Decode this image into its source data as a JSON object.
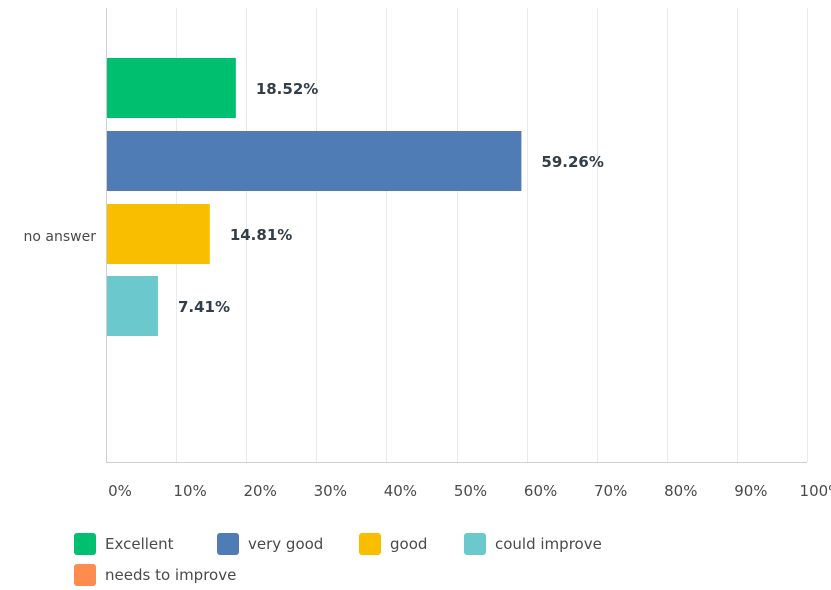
{
  "chart_data": {
    "type": "bar",
    "orientation": "horizontal",
    "categories": [
      "no answer"
    ],
    "series": [
      {
        "name": "Excellent",
        "values": [
          18.52
        ],
        "label": "18.52%",
        "color": "#00bf6f"
      },
      {
        "name": "very good",
        "values": [
          59.26
        ],
        "label": "59.26%",
        "color": "#507cb6"
      },
      {
        "name": "good",
        "values": [
          14.81
        ],
        "label": "14.81%",
        "color": "#f9be00"
      },
      {
        "name": "could improve",
        "values": [
          7.41
        ],
        "label": "7.41%",
        "color": "#6bc8cd"
      },
      {
        "name": "needs to improve",
        "values": [
          null
        ],
        "label": "",
        "color": "#ff8b4f"
      }
    ],
    "xlim": [
      0,
      100
    ],
    "x_ticks": [
      0,
      10,
      20,
      30,
      40,
      50,
      60,
      70,
      80,
      90,
      100
    ],
    "x_tick_labels": [
      "0%",
      "10%",
      "20%",
      "30%",
      "40%",
      "50%",
      "60%",
      "70%",
      "80%",
      "90%",
      "100%"
    ],
    "grid": true,
    "legend_position": "bottom-left"
  }
}
